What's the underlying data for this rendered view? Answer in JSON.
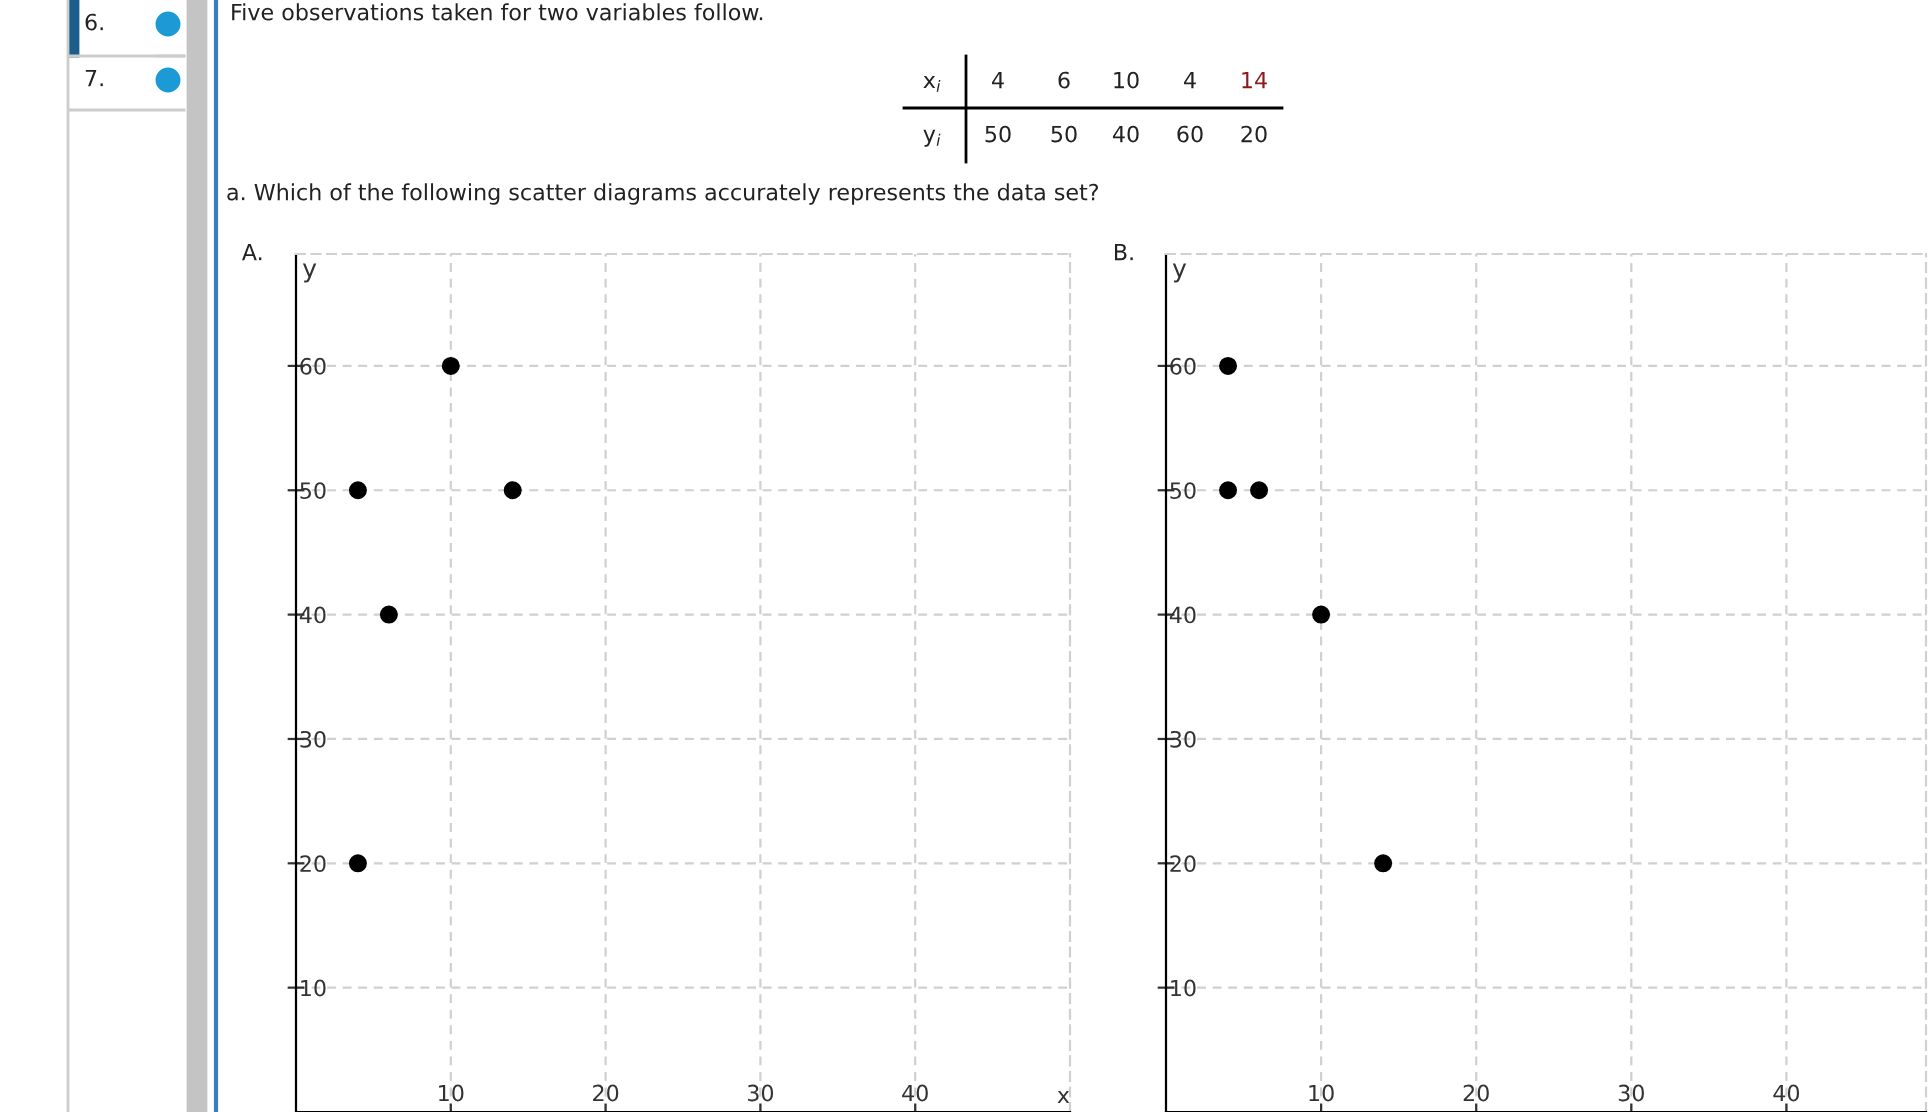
{
  "chart_data": [
    {
      "type": "other",
      "annotations": [
        "6.",
        "7.",
        "Five observations taken for two variables follow.",
        "x$_{i}$",
        "4",
        "6",
        "10",
        "4",
        "14",
        "y$_{i}$",
        "50",
        "50",
        "40",
        "60",
        "20",
        "a. Which of the following scatter diagrams accurately represents the data set?"
      ]
    },
    {
      "type": "scatter",
      "title": "A.",
      "xlabel": "x",
      "ylabel": "y",
      "x": [
        4,
        6,
        10,
        14,
        4
      ],
      "values": [
        50,
        40,
        60,
        50,
        20
      ],
      "color": "#000000",
      "marker": "circle",
      "xlim": [
        0,
        50
      ],
      "ylim": [
        0,
        69
      ],
      "xticks": [
        10,
        20,
        30,
        40
      ],
      "yticks": [
        10,
        20,
        30,
        40,
        50,
        60
      ],
      "grid": true
    },
    {
      "type": "scatter",
      "title": "B.",
      "ylabel": "y",
      "x": [
        4,
        4,
        6,
        10,
        14
      ],
      "values": [
        60,
        50,
        50,
        40,
        20
      ],
      "color": "#000000",
      "marker": "circle",
      "xlim": [
        0,
        49
      ],
      "ylim": [
        0,
        69
      ],
      "xticks": [
        10,
        20,
        30,
        40
      ],
      "yticks": [
        10,
        20,
        30,
        40,
        50,
        60
      ],
      "grid": true
    }
  ]
}
